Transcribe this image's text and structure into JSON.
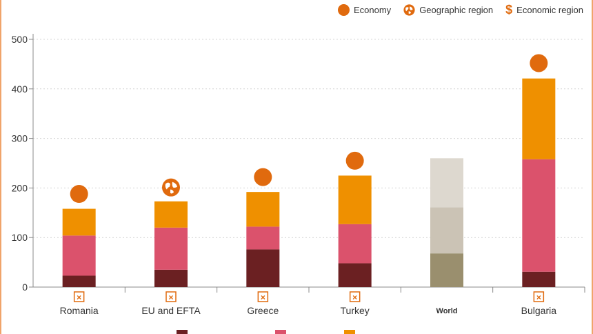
{
  "legend": {
    "economy": "Economy",
    "geographic": "Geographic region",
    "economic": "Economic region",
    "economy_icon": "circle-marker-icon",
    "geographic_icon": "globe-icon",
    "economic_icon": "dollar-icon"
  },
  "chart_data": {
    "type": "bar",
    "stacked": true,
    "categories": [
      "Romania",
      "EU and EFTA",
      "Greece",
      "Turkey",
      "World",
      "Bulgaria"
    ],
    "series": [
      {
        "values": [
          23,
          35,
          76,
          48,
          68,
          31
        ],
        "color": "#6b2022"
      },
      {
        "values": [
          81,
          85,
          46,
          79,
          93,
          227
        ],
        "color": "#db526c"
      },
      {
        "values": [
          54,
          53,
          70,
          98,
          99,
          163
        ],
        "color": "#ef9000"
      }
    ],
    "world_colors": [
      "#9a8f6e",
      "#cbc3b5",
      "#ddd8cf"
    ],
    "markers": [
      {
        "category": "Romania",
        "kind": "economy",
        "value": 188
      },
      {
        "category": "EU and EFTA",
        "kind": "geographic",
        "value": 201
      },
      {
        "category": "Greece",
        "kind": "economy",
        "value": 222
      },
      {
        "category": "Turkey",
        "kind": "economy",
        "value": 255
      },
      {
        "category": "Bulgaria",
        "kind": "economy",
        "value": 452
      }
    ],
    "category_flags": [
      true,
      true,
      true,
      true,
      false,
      true
    ],
    "yticks": [
      0,
      100,
      200,
      300,
      400,
      500
    ],
    "ylim": [
      0,
      500
    ],
    "grid": true,
    "accent": "#e06a0e"
  }
}
